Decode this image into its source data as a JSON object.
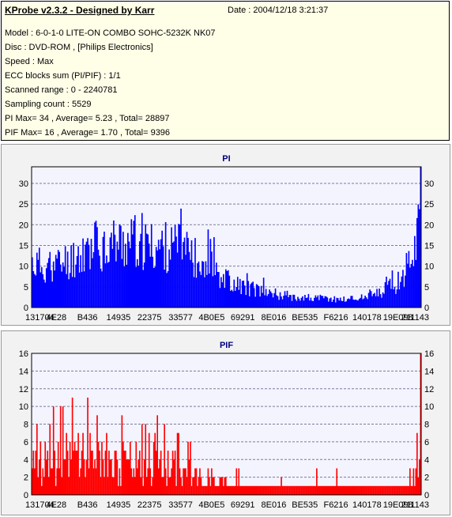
{
  "header": {
    "title": "KProbe v2.3.2 - Designed by Karr",
    "date": "Date : 2004/12/18 3:21:37",
    "lines": [
      "Model : 6-0-1-0 LITE-ON COMBO SOHC-5232K NK07",
      "Disc : DVD-ROM ,  [Philips Electronics]",
      "Speed : Max",
      "ECC blocks sum (PI/PIF) : 1/1",
      "Scanned range : 0 - 2240781",
      "Sampling count : 5529",
      "PI Max= 34 , Average= 5.23 , Total= 28897",
      "PIF Max= 16 , Average= 1.70 , Total= 9396"
    ]
  },
  "chart_data": [
    {
      "type": "bar",
      "title": "PI",
      "x_tick_labels": [
        "131704",
        "4E28",
        "B436",
        "14935",
        "22375",
        "33577",
        "4B0E5",
        "69291",
        "8E016",
        "BE535",
        "F6216",
        "140178",
        "19E098",
        "211143"
      ],
      "ylim": [
        0,
        34
      ],
      "y_ticks": [
        0,
        5,
        10,
        15,
        20,
        25,
        30
      ],
      "grid": true,
      "color": "#0000ff",
      "profile": [
        {
          "x": 0,
          "y": 11
        },
        {
          "x": 0.05,
          "y": 10
        },
        {
          "x": 0.1,
          "y": 12
        },
        {
          "x": 0.15,
          "y": 15
        },
        {
          "x": 0.2,
          "y": 16
        },
        {
          "x": 0.25,
          "y": 16
        },
        {
          "x": 0.3,
          "y": 15
        },
        {
          "x": 0.35,
          "y": 15
        },
        {
          "x": 0.4,
          "y": 14
        },
        {
          "x": 0.45,
          "y": 11
        },
        {
          "x": 0.5,
          "y": 7
        },
        {
          "x": 0.55,
          "y": 5
        },
        {
          "x": 0.6,
          "y": 4
        },
        {
          "x": 0.65,
          "y": 3
        },
        {
          "x": 0.7,
          "y": 2.5
        },
        {
          "x": 0.75,
          "y": 2.2
        },
        {
          "x": 0.8,
          "y": 2
        },
        {
          "x": 0.85,
          "y": 2.5
        },
        {
          "x": 0.9,
          "y": 3.5
        },
        {
          "x": 0.94,
          "y": 6
        },
        {
          "x": 0.97,
          "y": 11
        },
        {
          "x": 0.99,
          "y": 18
        },
        {
          "x": 1,
          "y": 24
        }
      ],
      "max": 34,
      "average": 5.23
    },
    {
      "type": "bar",
      "title": "PIF",
      "x_tick_labels": [
        "131704",
        "4E28",
        "B436",
        "14935",
        "22375",
        "33577",
        "4B0E5",
        "69291",
        "8E016",
        "BE535",
        "F6216",
        "140178",
        "19E098",
        "211143"
      ],
      "ylim": [
        0,
        16
      ],
      "y_ticks": [
        0,
        2,
        4,
        6,
        8,
        10,
        12,
        14,
        16
      ],
      "grid": true,
      "color": "#ff0000",
      "profile": [
        {
          "x": 0,
          "y": 4
        },
        {
          "x": 0.1,
          "y": 4
        },
        {
          "x": 0.2,
          "y": 4
        },
        {
          "x": 0.3,
          "y": 3.5
        },
        {
          "x": 0.4,
          "y": 2.5
        },
        {
          "x": 0.45,
          "y": 1.5
        },
        {
          "x": 0.5,
          "y": 1
        },
        {
          "x": 0.6,
          "y": 1
        },
        {
          "x": 0.7,
          "y": 1
        },
        {
          "x": 0.8,
          "y": 1
        },
        {
          "x": 0.9,
          "y": 1
        },
        {
          "x": 0.97,
          "y": 1
        },
        {
          "x": 0.99,
          "y": 3
        },
        {
          "x": 1,
          "y": 5
        }
      ],
      "max": 16,
      "average": 1.7
    }
  ]
}
